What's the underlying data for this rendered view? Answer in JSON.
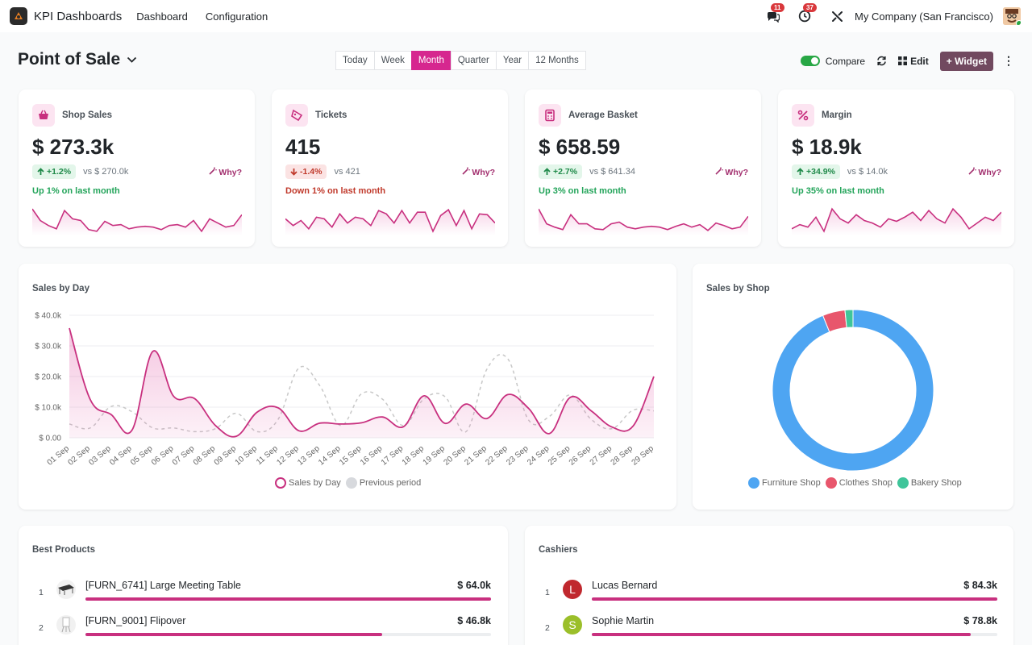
{
  "navbar": {
    "app_title": "KPI Dashboards",
    "menu": [
      "Dashboard",
      "Configuration"
    ],
    "messages_count": "11",
    "activities_count": "37",
    "company": "My Company (San Francisco)"
  },
  "control": {
    "title": "Point of Sale",
    "periods": [
      "Today",
      "Week",
      "Month",
      "Quarter",
      "Year",
      "12 Months"
    ],
    "active_period": "Month",
    "compare_label": "Compare",
    "compare_on": true,
    "edit_label": "Edit",
    "widget_label": "+ Widget",
    "more": "⋮"
  },
  "kpis": [
    {
      "title": "Shop Sales",
      "icon": "basket-icon",
      "value": "$ 273.3k",
      "change": "+1.2%",
      "trend": "up",
      "vs": "vs $ 270.0k",
      "why": "Why?",
      "sub": "Up 1% on last month",
      "spark": [
        72,
        58,
        52,
        48,
        70,
        60,
        58,
        47,
        45,
        57,
        52,
        53,
        48,
        50,
        51,
        50,
        47,
        52,
        53,
        50,
        58,
        45,
        60,
        55,
        50,
        52,
        65
      ]
    },
    {
      "title": "Tickets",
      "icon": "ticket-icon",
      "value": "415",
      "change": "-1.4%",
      "trend": "down",
      "vs": "vs 421",
      "why": "Why?",
      "sub": "Down 1% on last month",
      "spark": [
        60,
        52,
        58,
        48,
        62,
        60,
        50,
        66,
        55,
        62,
        60,
        52,
        70,
        66,
        55,
        70,
        55,
        68,
        68,
        45,
        64,
        71,
        52,
        70,
        48,
        66,
        65,
        55
      ]
    },
    {
      "title": "Average Basket",
      "icon": "calculator-icon",
      "value": "$ 658.59",
      "change": "+2.7%",
      "trend": "up",
      "vs": "vs $ 641.34",
      "why": "Why?",
      "sub": "Up 3% on last month",
      "spark": [
        72,
        54,
        50,
        47,
        65,
        54,
        54,
        48,
        47,
        54,
        56,
        50,
        48,
        50,
        51,
        50,
        47,
        51,
        54,
        50,
        53,
        46,
        55,
        52,
        48,
        50,
        63
      ]
    },
    {
      "title": "Margin",
      "icon": "percent-icon",
      "value": "$ 18.9k",
      "change": "+34.9%",
      "trend": "up",
      "vs": "vs $ 14.0k",
      "why": "Why?",
      "sub": "Up 35% on last month",
      "spark": [
        48,
        53,
        50,
        62,
        45,
        72,
        60,
        55,
        65,
        58,
        55,
        50,
        60,
        57,
        62,
        68,
        58,
        70,
        60,
        55,
        72,
        62,
        48,
        55,
        62,
        58,
        68
      ]
    }
  ],
  "sales_by_day": {
    "title": "Sales by Day",
    "chart_data": {
      "type": "area",
      "categories": [
        "01 Sep",
        "02 Sep",
        "03 Sep",
        "04 Sep",
        "05 Sep",
        "06 Sep",
        "07 Sep",
        "08 Sep",
        "09 Sep",
        "10 Sep",
        "11 Sep",
        "12 Sep",
        "13 Sep",
        "14 Sep",
        "15 Sep",
        "16 Sep",
        "17 Sep",
        "18 Sep",
        "19 Sep",
        "20 Sep",
        "21 Sep",
        "22 Sep",
        "23 Sep",
        "24 Sep",
        "25 Sep",
        "26 Sep",
        "27 Sep",
        "28 Sep",
        "29 Sep"
      ],
      "yticks": [
        "$ 0.00",
        "$ 10.0k",
        "$ 20.0k",
        "$ 30.0k",
        "$ 40.0k"
      ],
      "ylim": [
        0,
        40000
      ],
      "series": [
        {
          "name": "Sales by Day",
          "color": "#c8307f",
          "values": [
            35800,
            12500,
            7600,
            2500,
            28200,
            13500,
            12800,
            4000,
            500,
            8400,
            9800,
            2300,
            4800,
            4500,
            4900,
            6800,
            3600,
            13700,
            4700,
            11000,
            6300,
            14100,
            9600,
            1400,
            13200,
            8800,
            3500,
            3800,
            20000
          ]
        },
        {
          "name": "Previous period",
          "color": "#c8c8c8",
          "values": [
            4500,
            3200,
            10200,
            8500,
            3200,
            3200,
            2000,
            3000,
            8000,
            2000,
            6000,
            22800,
            17000,
            4000,
            14400,
            12600,
            4000,
            12800,
            13400,
            2000,
            22400,
            25800,
            5800,
            7000,
            14000,
            6000,
            3000,
            9000,
            8800
          ]
        }
      ]
    }
  },
  "sales_by_shop": {
    "title": "Sales by Shop",
    "chart_data": {
      "type": "pie",
      "categories": [
        "Furniture Shop",
        "Clothes Shop",
        "Bakery Shop"
      ],
      "values": [
        93.9,
        4.5,
        1.6
      ],
      "colors": [
        "#4ea5f2",
        "#e8566c",
        "#3fc59a"
      ]
    }
  },
  "best_products": {
    "title": "Best Products",
    "rows": [
      {
        "rank": "1",
        "label": "[FURN_6741] Large Meeting Table",
        "value": "$ 64.0k",
        "fraction": 1.0
      },
      {
        "rank": "2",
        "label": "[FURN_9001] Flipover",
        "value": "$ 46.8k",
        "fraction": 0.731
      }
    ]
  },
  "cashiers": {
    "title": "Cashiers",
    "rows": [
      {
        "rank": "1",
        "initial": "L",
        "avatar_color": "#c0282e",
        "label": "Lucas Bernard",
        "value": "$ 84.3k",
        "fraction": 1.0
      },
      {
        "rank": "2",
        "initial": "S",
        "avatar_color": "#9bbf2a",
        "label": "Sophie Martin",
        "value": "$ 78.8k",
        "fraction": 0.935
      }
    ]
  }
}
